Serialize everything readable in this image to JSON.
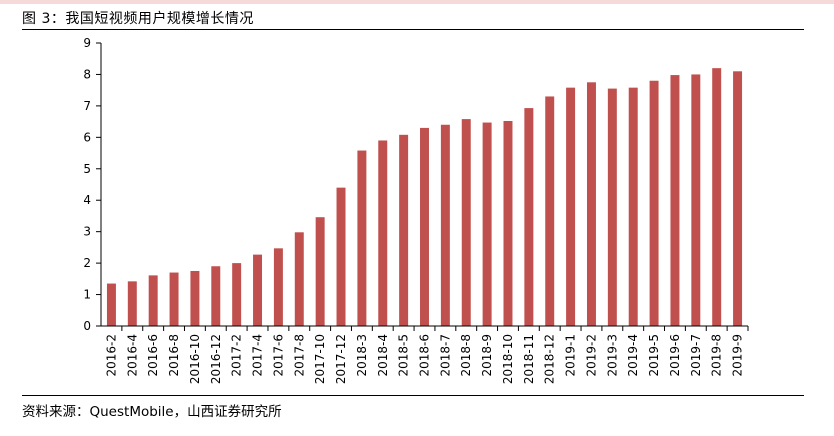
{
  "figure": {
    "title": "图 3：我国短视频用户规模增长情况",
    "source": "资料来源：QuestMobile，山西证券研究所"
  },
  "colors": {
    "bar": "#c0504d",
    "axis": "#000000",
    "top_band": "#f6dada"
  },
  "chart_data": {
    "type": "bar",
    "title": "",
    "xlabel": "",
    "ylabel": "",
    "ylim": [
      0,
      9
    ],
    "yticks": [
      "0",
      "1",
      "2",
      "3",
      "4",
      "5",
      "6",
      "7",
      "8",
      "9"
    ],
    "grid": false,
    "legend": "none",
    "categories": [
      "2016-2",
      "2016-4",
      "2016-6",
      "2016-8",
      "2016-10",
      "2016-12",
      "2017-2",
      "2017-4",
      "2017-6",
      "2017-8",
      "2017-10",
      "2017-12",
      "2018-3",
      "2018-4",
      "2018-5",
      "2018-6",
      "2018-7",
      "2018-8",
      "2018-9",
      "2018-10",
      "2018-11",
      "2018-12",
      "2019-1",
      "2019-2",
      "2019-3",
      "2019-4",
      "2019-5",
      "2019-6",
      "2019-7",
      "2019-8",
      "2019-9"
    ],
    "values": [
      1.35,
      1.42,
      1.61,
      1.7,
      1.75,
      1.9,
      2.0,
      2.27,
      2.47,
      2.98,
      3.46,
      4.4,
      5.58,
      5.9,
      6.08,
      6.3,
      6.4,
      6.58,
      6.47,
      6.52,
      6.93,
      7.3,
      7.58,
      7.75,
      7.55,
      7.58,
      7.8,
      7.98,
      8.0,
      8.2,
      8.1
    ]
  }
}
